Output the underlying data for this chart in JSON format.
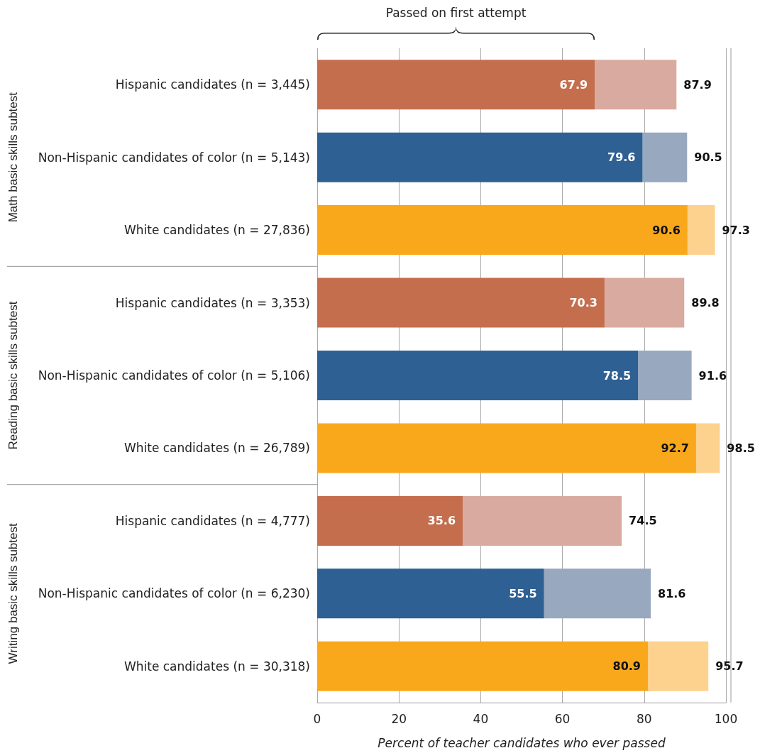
{
  "chart_data": {
    "type": "bar",
    "orientation": "horizontal",
    "xlabel": "Percent of teacher candidates who ever passed",
    "categories": [
      "Hispanic candidates (n = 3,445)",
      "Non-Hispanic candidates of color (n = 5,143)",
      "White candidates (n = 27,836)",
      "Hispanic candidates (n = 3,353)",
      "Non-Hispanic candidates of color (n = 5,106)",
      "White candidates (n = 26,789)",
      "Hispanic candidates (n = 4,777)",
      "Non-Hispanic candidates of color (n = 6,230)",
      "White candidates (n = 30,318)"
    ],
    "series": [
      {
        "colors": [
          "#c56e4e",
          "#2e6093",
          "#f9a81c",
          "#c56e4e",
          "#2e6093",
          "#f9a81c",
          "#c56e4e",
          "#2e6093",
          "#f9a81c"
        ],
        "values": [
          67.9,
          79.6,
          90.6,
          70.3,
          78.5,
          92.7,
          35.6,
          55.5,
          80.9
        ],
        "value_labels": [
          "67.9",
          "79.6",
          "90.6",
          "70.3",
          "78.5",
          "92.7",
          "35.6",
          "55.5",
          "80.9"
        ]
      },
      {
        "colors": [
          "#d9aba0",
          "#97a8bf",
          "#fdd18e",
          "#d9aba0",
          "#97a8bf",
          "#fdd18e",
          "#d9aba0",
          "#97a8bf",
          "#fdd18e"
        ],
        "values": [
          20.0,
          10.9,
          6.7,
          19.5,
          13.1,
          5.8,
          38.9,
          26.1,
          14.8
        ]
      }
    ],
    "totals": [
      "87.9",
      "90.5",
      "97.3",
      "89.8",
      "91.6",
      "98.5",
      "74.5",
      "81.6",
      "95.7"
    ],
    "stacked": true,
    "xlim": [
      0,
      100
    ],
    "xticks": [
      0,
      20,
      40,
      60,
      80,
      100
    ],
    "grid": "x",
    "annotations": [
      "Passed on first attempt",
      "Math basic skills subtest",
      "Reading basic skills subtest",
      "Writing basic skills subtest"
    ]
  }
}
